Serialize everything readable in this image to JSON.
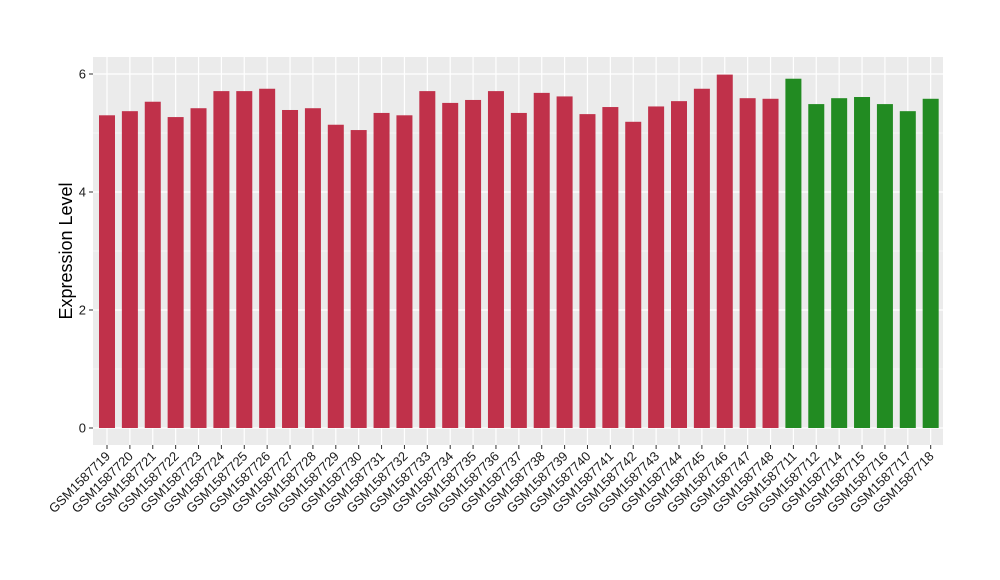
{
  "chart_data": {
    "type": "bar",
    "title": "",
    "xlabel": "",
    "ylabel": "Expression Level",
    "ylim": [
      0,
      6.3
    ],
    "yticks": [
      0,
      2,
      4,
      6
    ],
    "ytick_labels": [
      "0",
      "2",
      "4",
      "6"
    ],
    "grid": true,
    "legend": "none",
    "colors": {
      "group_a": "#C0314A",
      "group_b": "#228B22",
      "panel_bg": "#EBEBEB",
      "grid": "#FFFFFF"
    },
    "categories": [
      "GSM1587719",
      "GSM1587720",
      "GSM1587721",
      "GSM1587722",
      "GSM1587723",
      "GSM1587724",
      "GSM1587725",
      "GSM1587726",
      "GSM1587727",
      "GSM1587728",
      "GSM1587729",
      "GSM1587730",
      "GSM1587731",
      "GSM1587732",
      "GSM1587733",
      "GSM1587734",
      "GSM1587735",
      "GSM1587736",
      "GSM1587737",
      "GSM1587738",
      "GSM1587739",
      "GSM1587740",
      "GSM1587741",
      "GSM1587742",
      "GSM1587743",
      "GSM1587744",
      "GSM1587745",
      "GSM1587746",
      "GSM1587747",
      "GSM1587748",
      "GSM1587711",
      "GSM1587712",
      "GSM1587714",
      "GSM1587715",
      "GSM1587716",
      "GSM1587717",
      "GSM1587718"
    ],
    "values": [
      5.3,
      5.37,
      5.53,
      5.27,
      5.42,
      5.71,
      5.71,
      5.75,
      5.39,
      5.42,
      5.14,
      5.05,
      5.34,
      5.3,
      5.71,
      5.51,
      5.56,
      5.71,
      5.34,
      5.68,
      5.62,
      5.32,
      5.44,
      5.19,
      5.45,
      5.54,
      5.75,
      5.99,
      5.59,
      5.58,
      5.92,
      5.49,
      5.59,
      5.61,
      5.49,
      5.37,
      5.58
    ],
    "groups": [
      "a",
      "a",
      "a",
      "a",
      "a",
      "a",
      "a",
      "a",
      "a",
      "a",
      "a",
      "a",
      "a",
      "a",
      "a",
      "a",
      "a",
      "a",
      "a",
      "a",
      "a",
      "a",
      "a",
      "a",
      "a",
      "a",
      "a",
      "a",
      "a",
      "a",
      "b",
      "b",
      "b",
      "b",
      "b",
      "b",
      "b"
    ]
  }
}
